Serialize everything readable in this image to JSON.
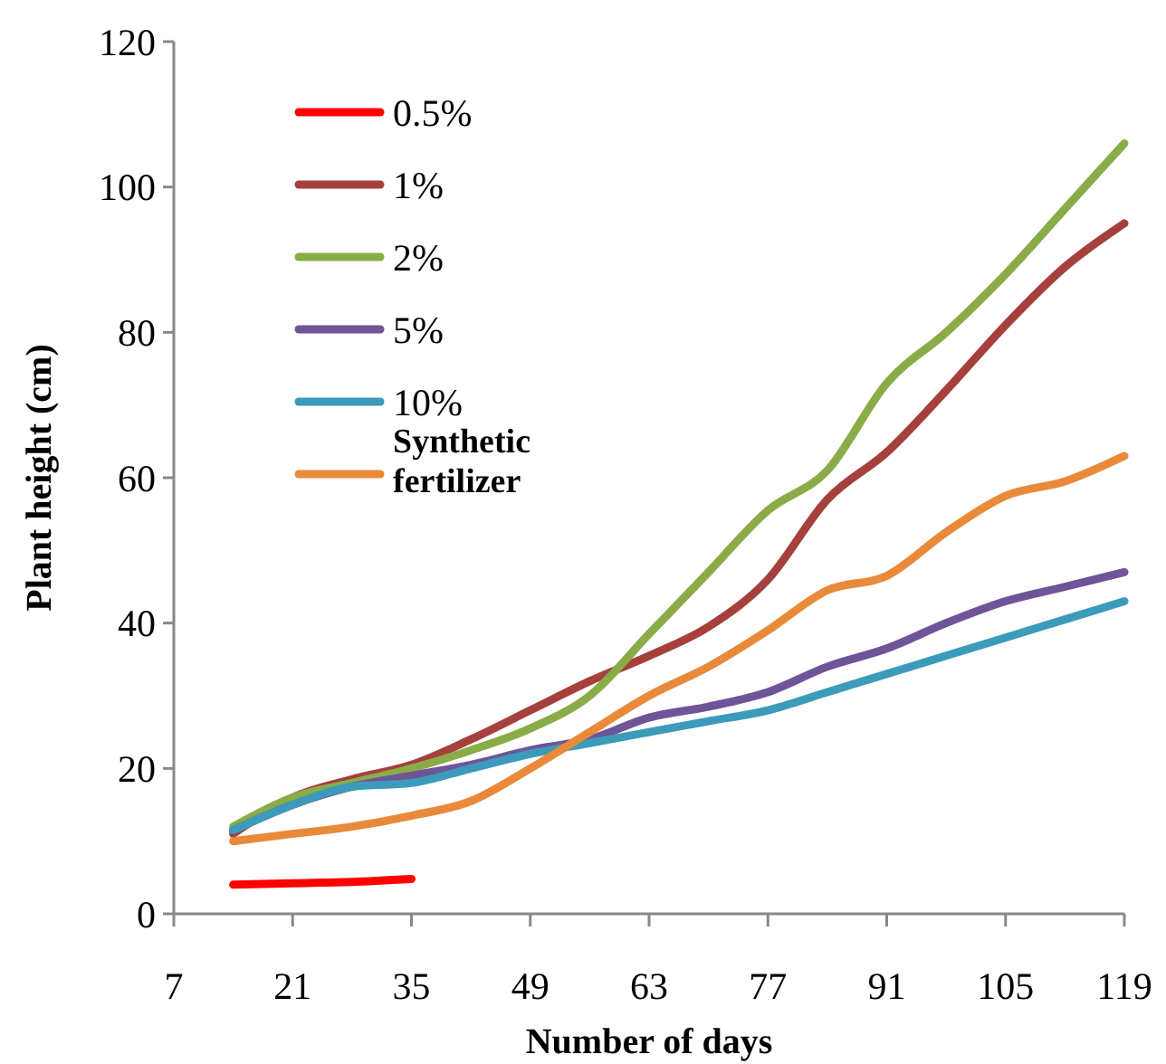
{
  "chart_data": {
    "type": "line",
    "xlabel": "Number of days",
    "ylabel": "Plant height (cm)",
    "x": [
      14,
      21,
      28,
      35,
      42,
      49,
      56,
      63,
      70,
      77,
      84,
      91,
      98,
      105,
      112,
      119
    ],
    "xlim": [
      7,
      119
    ],
    "xticks": [
      7,
      21,
      35,
      49,
      63,
      77,
      91,
      105,
      119
    ],
    "ylim": [
      0,
      120
    ],
    "yticks": [
      0,
      20,
      40,
      60,
      80,
      100,
      120
    ],
    "grid": false,
    "legend": "top left",
    "marker": "none",
    "line_style": "solid",
    "series": [
      {
        "name": "0.5%",
        "color": "#ff0000",
        "x": [
          14,
          21,
          28,
          35
        ],
        "values": [
          4,
          4.2,
          4.4,
          4.8
        ]
      },
      {
        "name": "1%",
        "color": "#a5403c",
        "values": [
          11,
          16,
          18.5,
          20.5,
          24,
          28,
          32,
          35.5,
          39.5,
          46,
          57,
          63.5,
          72,
          81,
          89,
          95
        ]
      },
      {
        "name": "2%",
        "color": "#8aac48",
        "values": [
          12,
          16,
          18,
          20,
          22.5,
          25.5,
          30,
          38.5,
          47,
          55.5,
          61,
          73,
          80,
          88,
          97,
          106
        ]
      },
      {
        "name": "5%",
        "color": "#6f5497",
        "values": [
          11.5,
          15,
          17.5,
          19,
          20.5,
          22.5,
          24,
          27,
          28.5,
          30.5,
          34,
          36.5,
          40,
          43,
          45,
          47
        ]
      },
      {
        "name": "10%",
        "color": "#3c9bba",
        "values": [
          11.5,
          15,
          17.5,
          18,
          20,
          22,
          23.5,
          25,
          26.5,
          28,
          30.5,
          33,
          35.5,
          38,
          40.5,
          43
        ]
      },
      {
        "name": "Synthetic fertilizer",
        "color": "#e98a3a",
        "values": [
          10,
          11,
          12,
          13.5,
          15.5,
          20,
          25,
          30,
          34,
          39,
          44.5,
          46.5,
          52.5,
          57.5,
          59.5,
          63
        ]
      }
    ]
  }
}
